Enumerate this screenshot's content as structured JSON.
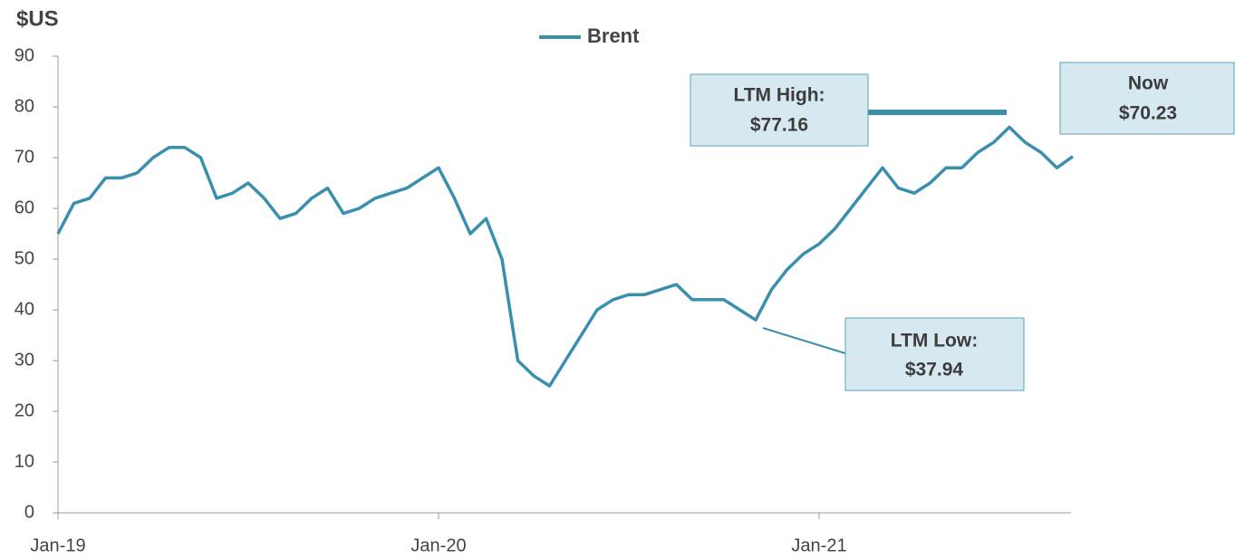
{
  "chart_data": {
    "type": "line",
    "y_axis_label": "$US",
    "categories": [
      "Jan-19",
      null,
      null,
      null,
      null,
      null,
      null,
      null,
      null,
      null,
      null,
      null,
      null,
      null,
      null,
      null,
      null,
      null,
      null,
      null,
      null,
      null,
      null,
      null,
      "Jan-20",
      null,
      null,
      null,
      null,
      null,
      null,
      null,
      null,
      null,
      null,
      null,
      null,
      null,
      null,
      null,
      null,
      null,
      null,
      null,
      null,
      null,
      null,
      null,
      "Jan-21",
      null,
      null,
      null,
      null,
      null,
      null,
      null,
      null,
      null,
      null,
      null,
      null,
      null,
      null,
      null,
      null
    ],
    "series": [
      {
        "name": "Brent",
        "color": "#3a8fae",
        "values": [
          55,
          61,
          62,
          66,
          66,
          67,
          70,
          72,
          72,
          70,
          62,
          63,
          65,
          62,
          58,
          59,
          62,
          64,
          59,
          60,
          62,
          63,
          64,
          66,
          68,
          62,
          55,
          58,
          50,
          30,
          27,
          25,
          30,
          35,
          40,
          42,
          43,
          43,
          44,
          45,
          42,
          42,
          42,
          40,
          38,
          44,
          48,
          51,
          53,
          56,
          60,
          64,
          68,
          64,
          63,
          65,
          68,
          68,
          71,
          73,
          76,
          73,
          71,
          68,
          70.23
        ]
      }
    ],
    "ylim": [
      0,
      90
    ],
    "yticks": [
      0,
      10,
      20,
      30,
      40,
      50,
      60,
      70,
      80,
      90
    ],
    "grid": false,
    "legend": "top",
    "annotations": [
      {
        "lines": [
          "LTM High:",
          "$77.16"
        ]
      },
      {
        "lines": [
          "Now",
          "$70.23"
        ]
      },
      {
        "lines": [
          "LTM Low:",
          "$37.94"
        ]
      }
    ]
  }
}
